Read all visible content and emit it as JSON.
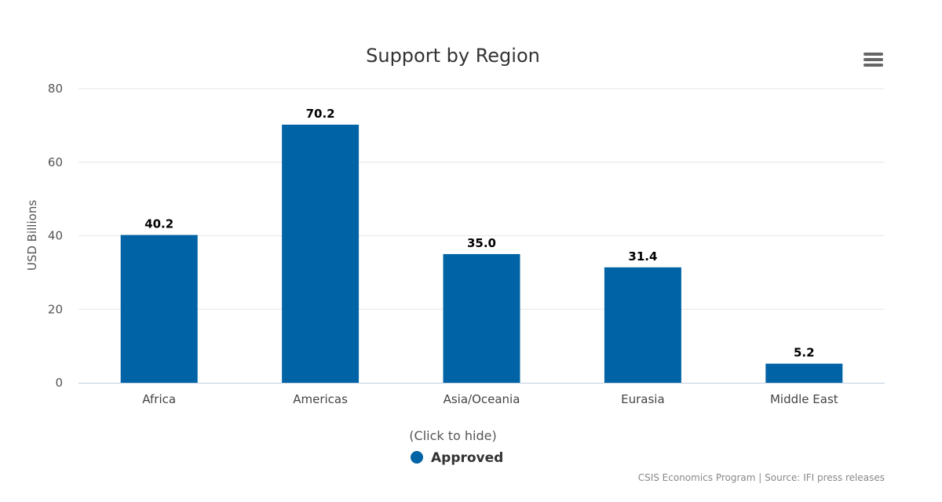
{
  "chart_data": {
    "type": "bar",
    "title": "Support by Region",
    "ylabel": "USD Billions",
    "xlabel": "",
    "categories": [
      "Africa",
      "Americas",
      "Asia/Oceania",
      "Eurasia",
      "Middle East"
    ],
    "series": [
      {
        "name": "Approved",
        "values": [
          40.2,
          70.2,
          35.0,
          31.4,
          5.2
        ],
        "data_labels": [
          "40.2",
          "70.2",
          "35.0",
          "31.4",
          "5.2"
        ],
        "color": "#0063a5"
      }
    ],
    "ylim": [
      0,
      80
    ],
    "yticks": [
      0,
      20,
      40,
      60,
      80
    ],
    "grid": true,
    "legend_position": "bottom-center"
  },
  "legend_hint": "(Click to hide)",
  "credits": "CSIS Economics Program | Source: IFI press releases",
  "menu_icon": "hamburger-menu-icon",
  "colors": {
    "grid": "#e6e6e6",
    "axis": "#c0d0e0",
    "menu": "#666666"
  }
}
